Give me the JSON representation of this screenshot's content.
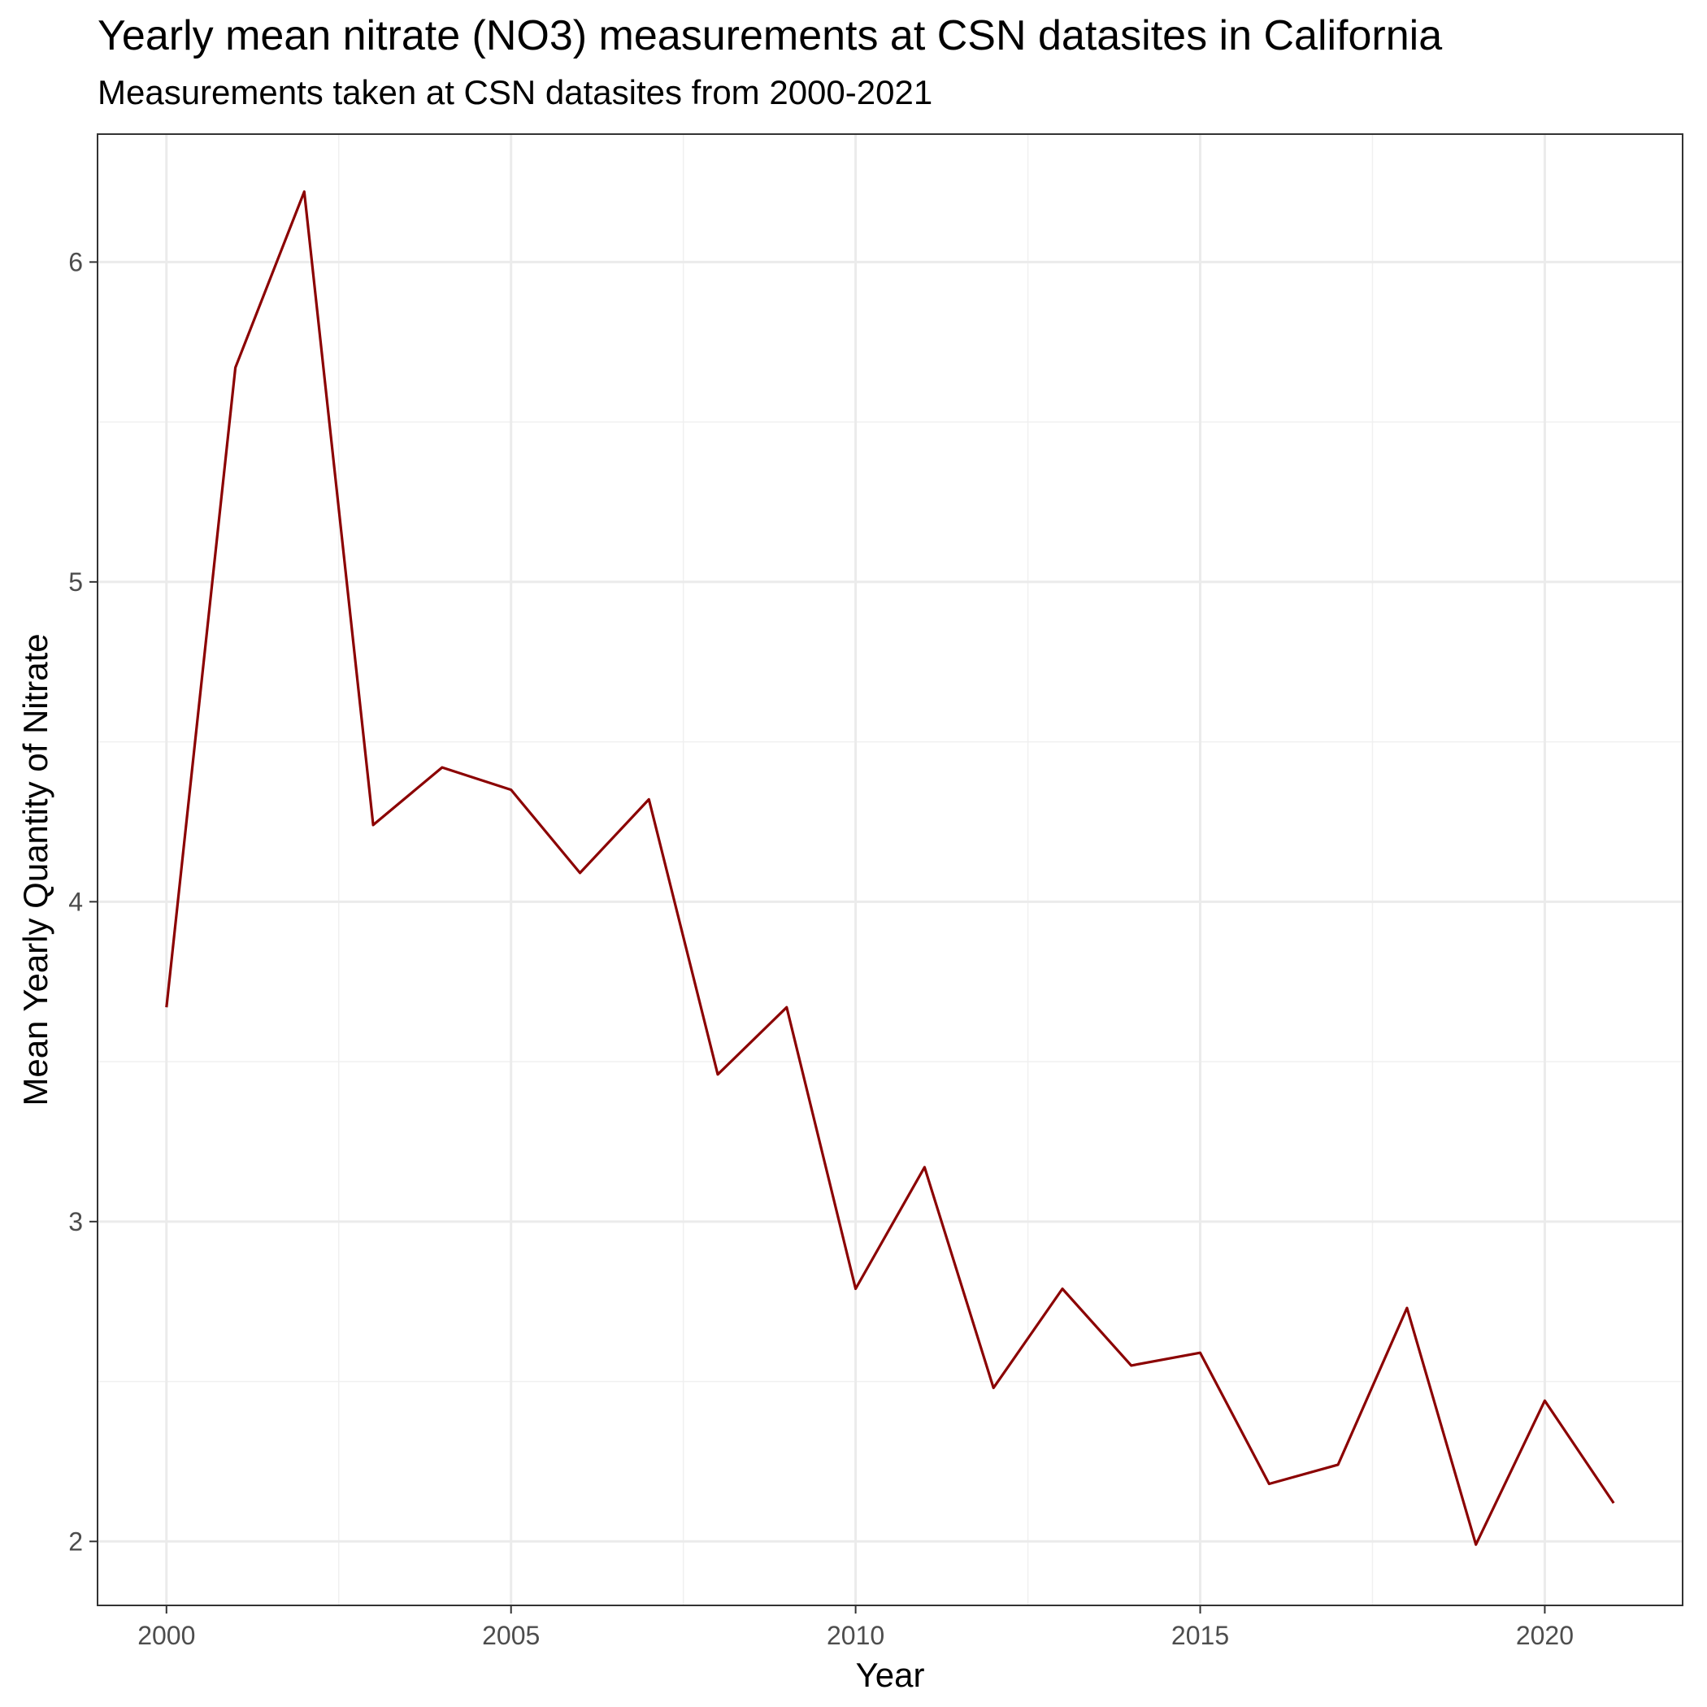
{
  "chart_data": {
    "type": "line",
    "title": "Yearly mean nitrate (NO3) measurements at CSN datasites in California",
    "subtitle": "Measurements taken at CSN datasites from 2000-2021",
    "xlabel": "Year",
    "ylabel": "Mean Yearly Quantity of Nitrate",
    "xlim": [
      1999,
      2022
    ],
    "ylim": [
      1.8,
      6.4
    ],
    "x_ticks": [
      2000,
      2005,
      2010,
      2015,
      2020
    ],
    "y_ticks": [
      2,
      3,
      4,
      5,
      6
    ],
    "grid": true,
    "legend": "none",
    "line_color": "#8b0000",
    "series": [
      {
        "x": [
          2000,
          2001,
          2002,
          2003,
          2004,
          2005,
          2006,
          2007,
          2008,
          2009,
          2010,
          2011,
          2012,
          2013,
          2014,
          2015,
          2016,
          2017,
          2018,
          2019,
          2020,
          2021
        ],
        "values": [
          3.67,
          5.67,
          6.22,
          4.24,
          4.42,
          4.35,
          4.09,
          4.32,
          3.46,
          3.67,
          2.79,
          3.17,
          2.48,
          2.79,
          2.55,
          2.59,
          2.18,
          2.24,
          2.73,
          1.99,
          2.44,
          2.12
        ]
      }
    ]
  }
}
